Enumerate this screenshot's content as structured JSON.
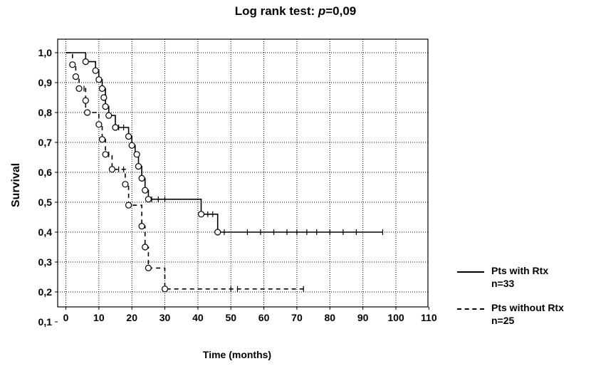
{
  "chart_data": {
    "type": "line",
    "title_prefix": "Log rank test: ",
    "title_p": "p",
    "title_suffix": "=0,09",
    "xlabel": "Time (months)",
    "ylabel": "Survival",
    "xlim": [
      0,
      110
    ],
    "ylim": [
      0.1,
      1.0
    ],
    "xticks": [
      "0",
      "10",
      "20",
      "30",
      "40",
      "50",
      "60",
      "70",
      "80",
      "90",
      "100",
      "110"
    ],
    "yticks": [
      "0,1",
      "0,2",
      "0,3",
      "0,4",
      "0,5",
      "0,6",
      "0,7",
      "0,8",
      "0,9",
      "1,0"
    ],
    "grid": true,
    "legend_position": "bottom-right",
    "series": [
      {
        "name": "Pts with Rtx",
        "n_label": "n=33",
        "style": "solid",
        "step_x": [
          0,
          6,
          6,
          9,
          9,
          10,
          10,
          11,
          11,
          12,
          12,
          13,
          13,
          15,
          15,
          19,
          19,
          20,
          20,
          21,
          21,
          22,
          22,
          23,
          23,
          24,
          24,
          25,
          25,
          41,
          41,
          46,
          46,
          96
        ],
        "step_y": [
          1.0,
          1.0,
          0.97,
          0.97,
          0.94,
          0.94,
          0.91,
          0.91,
          0.88,
          0.88,
          0.82,
          0.82,
          0.79,
          0.79,
          0.75,
          0.75,
          0.72,
          0.72,
          0.69,
          0.69,
          0.66,
          0.66,
          0.62,
          0.62,
          0.58,
          0.58,
          0.54,
          0.54,
          0.51,
          0.51,
          0.46,
          0.46,
          0.4,
          0.4
        ],
        "events": [
          [
            6,
            0.97
          ],
          [
            9,
            0.94
          ],
          [
            10,
            0.91
          ],
          [
            11,
            0.88
          ],
          [
            11.5,
            0.85
          ],
          [
            12,
            0.82
          ],
          [
            13,
            0.79
          ],
          [
            15,
            0.75
          ],
          [
            19,
            0.72
          ],
          [
            20,
            0.69
          ],
          [
            21.5,
            0.66
          ],
          [
            22,
            0.62
          ],
          [
            23,
            0.58
          ],
          [
            24,
            0.54
          ],
          [
            25,
            0.51
          ],
          [
            41,
            0.46
          ],
          [
            46,
            0.4
          ]
        ],
        "censored": [
          [
            16,
            0.75
          ],
          [
            17.5,
            0.75
          ],
          [
            26,
            0.51
          ],
          [
            28,
            0.51
          ],
          [
            30,
            0.51
          ],
          [
            43,
            0.46
          ],
          [
            44.5,
            0.46
          ],
          [
            48,
            0.4
          ],
          [
            55,
            0.4
          ],
          [
            59,
            0.4
          ],
          [
            63,
            0.4
          ],
          [
            67,
            0.4
          ],
          [
            70,
            0.4
          ],
          [
            73,
            0.4
          ],
          [
            76,
            0.4
          ],
          [
            80,
            0.4
          ],
          [
            84,
            0.4
          ],
          [
            88,
            0.4
          ],
          [
            96,
            0.4
          ]
        ]
      },
      {
        "name": "Pts without Rtx",
        "n_label": "n=25",
        "style": "dashed",
        "step_x": [
          0,
          2,
          2,
          3,
          3,
          4,
          4,
          6,
          6,
          10,
          10,
          11,
          11,
          12,
          12,
          14,
          14,
          18,
          18,
          19,
          19,
          23,
          23,
          24,
          24,
          25,
          25,
          30,
          30,
          72
        ],
        "step_y": [
          1.0,
          1.0,
          0.96,
          0.96,
          0.92,
          0.92,
          0.88,
          0.88,
          0.8,
          0.8,
          0.76,
          0.76,
          0.71,
          0.71,
          0.66,
          0.66,
          0.61,
          0.61,
          0.56,
          0.56,
          0.49,
          0.49,
          0.42,
          0.42,
          0.35,
          0.35,
          0.28,
          0.28,
          0.21,
          0.21
        ],
        "events": [
          [
            2,
            0.96
          ],
          [
            3,
            0.92
          ],
          [
            4,
            0.88
          ],
          [
            6,
            0.84
          ],
          [
            6.5,
            0.8
          ],
          [
            10,
            0.76
          ],
          [
            11,
            0.71
          ],
          [
            12,
            0.66
          ],
          [
            14,
            0.61
          ],
          [
            18,
            0.56
          ],
          [
            19,
            0.49
          ],
          [
            23,
            0.42
          ],
          [
            24,
            0.35
          ],
          [
            25,
            0.28
          ],
          [
            30,
            0.21
          ]
        ],
        "censored": [
          [
            5.5,
            0.88
          ],
          [
            13,
            0.66
          ],
          [
            16,
            0.61
          ],
          [
            17.5,
            0.61
          ],
          [
            50,
            0.21
          ],
          [
            52,
            0.21
          ],
          [
            72,
            0.21
          ]
        ]
      }
    ]
  }
}
